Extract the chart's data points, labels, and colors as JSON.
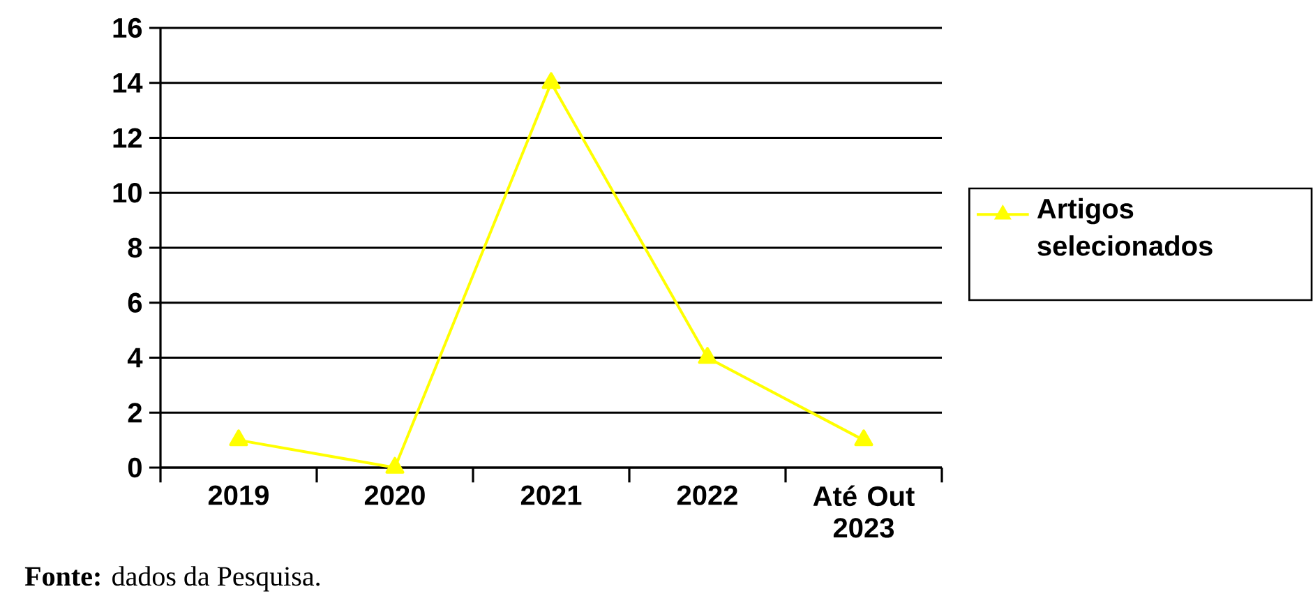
{
  "chart_data": {
    "type": "line",
    "categories": [
      "2019",
      "2020",
      "2021",
      "2022",
      "Até Out 2023"
    ],
    "series": [
      {
        "name": "Artigos selecionados",
        "color": "#ffff00",
        "values": [
          1,
          0,
          14,
          4,
          1
        ]
      }
    ],
    "ylim": [
      0,
      16
    ],
    "yticks": [
      0,
      2,
      4,
      6,
      8,
      10,
      12,
      14,
      16
    ],
    "grid": "y",
    "legend": "right",
    "marker": "triangle",
    "annotations": [
      "**Fonte:** dados da Pesquisa."
    ]
  }
}
